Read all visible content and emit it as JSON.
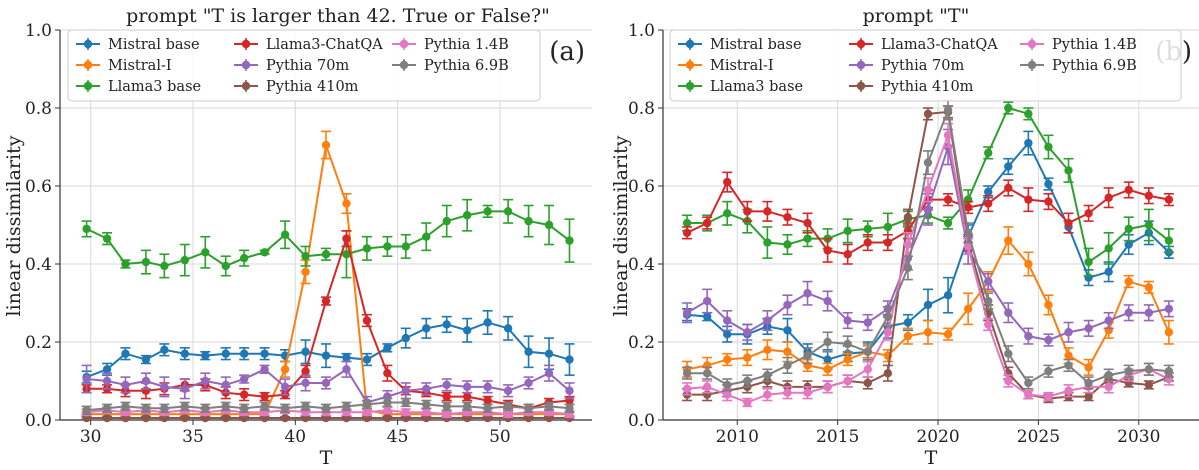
{
  "chart_data": [
    {
      "type": "line",
      "panel_label": "(a)",
      "title": "prompt \"T is larger than 42. True or False?\"",
      "xlabel": "T",
      "ylabel": "linear dissimilarity",
      "xlim": [
        28.5,
        54.5
      ],
      "ylim": [
        0,
        1.0
      ],
      "xticks": [
        30,
        35,
        40,
        45,
        50
      ],
      "yticks": [
        0.0,
        0.2,
        0.4,
        0.6,
        0.8,
        1.0
      ],
      "legend_position": "top",
      "x": [
        29.8,
        30.8,
        31.7,
        32.7,
        33.6,
        34.6,
        35.6,
        36.6,
        37.5,
        38.5,
        39.5,
        40.5,
        41.5,
        42.5,
        43.5,
        44.5,
        45.4,
        46.4,
        47.4,
        48.4,
        49.4,
        50.4,
        51.4,
        52.4,
        53.4
      ],
      "series": [
        {
          "name": "Mistral base",
          "color": "#1f77b4",
          "values": [
            0.11,
            0.13,
            0.17,
            0.155,
            0.18,
            0.17,
            0.165,
            0.17,
            0.17,
            0.17,
            0.165,
            0.175,
            0.165,
            0.16,
            0.155,
            0.185,
            0.21,
            0.235,
            0.245,
            0.23,
            0.25,
            0.235,
            0.175,
            0.17,
            0.155
          ],
          "errors": [
            0.015,
            0.015,
            0.015,
            0.01,
            0.015,
            0.015,
            0.01,
            0.015,
            0.015,
            0.015,
            0.015,
            0.03,
            0.03,
            0.01,
            0.015,
            0.01,
            0.025,
            0.025,
            0.02,
            0.03,
            0.03,
            0.03,
            0.04,
            0.04,
            0.04
          ]
        },
        {
          "name": "Mistral-I",
          "color": "#ff7f0e",
          "values": [
            0.015,
            0.015,
            0.015,
            0.015,
            0.015,
            0.015,
            0.015,
            0.015,
            0.015,
            0.015,
            0.13,
            0.38,
            0.705,
            0.555,
            0.025,
            0.015,
            0.015,
            0.015,
            0.015,
            0.015,
            0.015,
            0.015,
            0.015,
            0.015,
            0.015
          ],
          "errors": [
            0.005,
            0.005,
            0.005,
            0.005,
            0.005,
            0.005,
            0.005,
            0.005,
            0.005,
            0.005,
            0.02,
            0.03,
            0.035,
            0.025,
            0.01,
            0.005,
            0.005,
            0.005,
            0.005,
            0.005,
            0.005,
            0.005,
            0.005,
            0.005,
            0.005
          ]
        },
        {
          "name": "Llama3 base",
          "color": "#2ca02c",
          "values": [
            0.49,
            0.465,
            0.4,
            0.405,
            0.395,
            0.41,
            0.43,
            0.395,
            0.415,
            0.43,
            0.475,
            0.42,
            0.425,
            0.425,
            0.44,
            0.445,
            0.445,
            0.47,
            0.51,
            0.525,
            0.535,
            0.535,
            0.51,
            0.5,
            0.46
          ],
          "errors": [
            0.02,
            0.015,
            0.01,
            0.03,
            0.03,
            0.04,
            0.04,
            0.025,
            0.02,
            0.005,
            0.035,
            0.025,
            0.015,
            0.06,
            0.03,
            0.025,
            0.03,
            0.035,
            0.04,
            0.04,
            0.015,
            0.03,
            0.04,
            0.05,
            0.055
          ]
        },
        {
          "name": "Llama3-ChatQA",
          "color": "#d62728",
          "values": [
            0.08,
            0.08,
            0.075,
            0.075,
            0.08,
            0.09,
            0.09,
            0.07,
            0.065,
            0.06,
            0.065,
            0.125,
            0.305,
            0.465,
            0.255,
            0.12,
            0.075,
            0.07,
            0.06,
            0.06,
            0.05,
            0.04,
            0.03,
            0.045,
            0.05
          ],
          "errors": [
            0.01,
            0.01,
            0.015,
            0.02,
            0.015,
            0.015,
            0.015,
            0.015,
            0.015,
            0.01,
            0.01,
            0.015,
            0.01,
            0.02,
            0.015,
            0.02,
            0.01,
            0.01,
            0.01,
            0.01,
            0.01,
            0.01,
            0.01,
            0.01,
            0.01
          ]
        },
        {
          "name": "Pythia 70m",
          "color": "#9467bd",
          "values": [
            0.105,
            0.1,
            0.09,
            0.1,
            0.085,
            0.08,
            0.1,
            0.09,
            0.105,
            0.13,
            0.085,
            0.095,
            0.095,
            0.13,
            0.045,
            0.06,
            0.075,
            0.08,
            0.09,
            0.085,
            0.085,
            0.075,
            0.095,
            0.12,
            0.075
          ],
          "errors": [
            0.035,
            0.02,
            0.02,
            0.02,
            0.025,
            0.025,
            0.02,
            0.02,
            0.01,
            0.01,
            0.02,
            0.02,
            0.015,
            0.02,
            0.015,
            0.015,
            0.02,
            0.015,
            0.015,
            0.015,
            0.015,
            0.015,
            0.015,
            0.02,
            0.02
          ]
        },
        {
          "name": "Pythia 410m",
          "color": "#8c564b",
          "values": [
            0.005,
            0.005,
            0.005,
            0.005,
            0.005,
            0.005,
            0.005,
            0.005,
            0.005,
            0.005,
            0.005,
            0.005,
            0.005,
            0.005,
            0.005,
            0.005,
            0.005,
            0.005,
            0.005,
            0.005,
            0.005,
            0.005,
            0.005,
            0.005,
            0.005
          ],
          "errors": [
            0.003,
            0.003,
            0.003,
            0.003,
            0.003,
            0.003,
            0.003,
            0.003,
            0.003,
            0.003,
            0.003,
            0.003,
            0.003,
            0.003,
            0.003,
            0.003,
            0.003,
            0.003,
            0.003,
            0.003,
            0.003,
            0.003,
            0.003,
            0.003,
            0.003
          ]
        },
        {
          "name": "Pythia 1.4B",
          "color": "#e377c2",
          "values": [
            0.02,
            0.025,
            0.02,
            0.025,
            0.02,
            0.025,
            0.02,
            0.025,
            0.02,
            0.02,
            0.025,
            0.02,
            0.02,
            0.02,
            0.02,
            0.025,
            0.02,
            0.02,
            0.015,
            0.02,
            0.02,
            0.015,
            0.02,
            0.02,
            0.015
          ],
          "errors": [
            0.008,
            0.008,
            0.008,
            0.008,
            0.008,
            0.008,
            0.008,
            0.008,
            0.008,
            0.008,
            0.008,
            0.008,
            0.008,
            0.008,
            0.008,
            0.008,
            0.008,
            0.008,
            0.008,
            0.008,
            0.008,
            0.008,
            0.008,
            0.008,
            0.008
          ]
        },
        {
          "name": "Pythia 6.9B",
          "color": "#7f7f7f",
          "values": [
            0.025,
            0.03,
            0.035,
            0.03,
            0.03,
            0.035,
            0.03,
            0.035,
            0.03,
            0.035,
            0.03,
            0.035,
            0.03,
            0.035,
            0.04,
            0.045,
            0.045,
            0.04,
            0.035,
            0.035,
            0.03,
            0.035,
            0.03,
            0.035,
            0.03
          ],
          "errors": [
            0.01,
            0.01,
            0.01,
            0.01,
            0.01,
            0.01,
            0.01,
            0.01,
            0.01,
            0.01,
            0.01,
            0.01,
            0.01,
            0.01,
            0.01,
            0.01,
            0.01,
            0.01,
            0.01,
            0.01,
            0.01,
            0.01,
            0.01,
            0.01,
            0.01
          ]
        }
      ]
    },
    {
      "type": "line",
      "panel_label": "(b)",
      "title": "prompt \"T\"",
      "xlabel": "T",
      "ylabel": "linear dissimilarity",
      "xlim": [
        2006.3,
        2033.0
      ],
      "ylim": [
        0,
        1.0
      ],
      "xticks": [
        2010,
        2015,
        2020,
        2025,
        2030
      ],
      "yticks": [
        0.0,
        0.2,
        0.4,
        0.6,
        0.8,
        1.0
      ],
      "legend_position": "top",
      "x": [
        2007.5,
        2008.5,
        2009.5,
        2010.5,
        2011.5,
        2012.5,
        2013.5,
        2014.5,
        2015.5,
        2016.5,
        2017.5,
        2018.5,
        2019.5,
        2020.5,
        2021.5,
        2022.5,
        2023.5,
        2024.5,
        2025.5,
        2026.5,
        2027.5,
        2028.5,
        2029.5,
        2030.5,
        2031.5
      ],
      "series": [
        {
          "name": "Mistral base",
          "color": "#1f77b4",
          "values": [
            0.27,
            0.265,
            0.22,
            0.22,
            0.24,
            0.23,
            0.175,
            0.155,
            0.17,
            0.175,
            0.24,
            0.25,
            0.295,
            0.32,
            0.47,
            0.585,
            0.65,
            0.71,
            0.605,
            0.495,
            0.365,
            0.38,
            0.45,
            0.48,
            0.43
          ],
          "errors": [
            0.015,
            0.01,
            0.02,
            0.025,
            0.02,
            0.03,
            0.02,
            0.025,
            0.02,
            0.025,
            0.03,
            0.02,
            0.04,
            0.045,
            0.03,
            0.015,
            0.02,
            0.03,
            0.015,
            0.015,
            0.02,
            0.025,
            0.025,
            0.03,
            0.015
          ]
        },
        {
          "name": "Mistral-I",
          "color": "#ff7f0e",
          "values": [
            0.13,
            0.14,
            0.155,
            0.16,
            0.18,
            0.175,
            0.14,
            0.13,
            0.155,
            0.175,
            0.165,
            0.215,
            0.225,
            0.22,
            0.285,
            0.355,
            0.46,
            0.4,
            0.295,
            0.165,
            0.135,
            0.23,
            0.355,
            0.34,
            0.225
          ],
          "errors": [
            0.02,
            0.02,
            0.015,
            0.02,
            0.025,
            0.025,
            0.015,
            0.015,
            0.015,
            0.015,
            0.015,
            0.02,
            0.03,
            0.015,
            0.04,
            0.025,
            0.035,
            0.03,
            0.025,
            0.02,
            0.02,
            0.02,
            0.015,
            0.015,
            0.03
          ]
        },
        {
          "name": "Llama3 base",
          "color": "#2ca02c",
          "values": [
            0.505,
            0.505,
            0.53,
            0.51,
            0.455,
            0.45,
            0.465,
            0.465,
            0.485,
            0.49,
            0.495,
            0.515,
            0.525,
            0.505,
            0.565,
            0.685,
            0.8,
            0.785,
            0.7,
            0.64,
            0.405,
            0.44,
            0.49,
            0.5,
            0.46
          ],
          "errors": [
            0.02,
            0.02,
            0.03,
            0.03,
            0.04,
            0.025,
            0.02,
            0.025,
            0.03,
            0.02,
            0.035,
            0.02,
            0.02,
            0.015,
            0.025,
            0.015,
            0.015,
            0.015,
            0.03,
            0.03,
            0.035,
            0.04,
            0.03,
            0.04,
            0.03
          ]
        },
        {
          "name": "Llama3-ChatQA",
          "color": "#d62728",
          "values": [
            0.48,
            0.505,
            0.61,
            0.535,
            0.535,
            0.52,
            0.505,
            0.435,
            0.425,
            0.455,
            0.455,
            0.485,
            0.565,
            0.565,
            0.545,
            0.555,
            0.595,
            0.565,
            0.56,
            0.505,
            0.53,
            0.57,
            0.59,
            0.575,
            0.565
          ],
          "errors": [
            0.015,
            0.015,
            0.025,
            0.025,
            0.025,
            0.02,
            0.025,
            0.03,
            0.025,
            0.02,
            0.02,
            0.02,
            0.025,
            0.015,
            0.015,
            0.02,
            0.02,
            0.03,
            0.02,
            0.025,
            0.02,
            0.025,
            0.02,
            0.02,
            0.015
          ]
        },
        {
          "name": "Pythia 70m",
          "color": "#9467bd",
          "values": [
            0.275,
            0.305,
            0.255,
            0.225,
            0.255,
            0.295,
            0.325,
            0.305,
            0.255,
            0.25,
            0.285,
            0.415,
            0.54,
            0.7,
            0.435,
            0.355,
            0.275,
            0.215,
            0.205,
            0.225,
            0.235,
            0.255,
            0.275,
            0.275,
            0.285
          ],
          "errors": [
            0.025,
            0.03,
            0.025,
            0.02,
            0.025,
            0.025,
            0.03,
            0.025,
            0.02,
            0.02,
            0.02,
            0.03,
            0.04,
            0.045,
            0.035,
            0.02,
            0.025,
            0.02,
            0.015,
            0.025,
            0.02,
            0.02,
            0.02,
            0.02,
            0.02
          ]
        },
        {
          "name": "Pythia 410m",
          "color": "#8c564b",
          "values": [
            0.065,
            0.065,
            0.075,
            0.085,
            0.1,
            0.085,
            0.085,
            0.085,
            0.1,
            0.095,
            0.12,
            0.52,
            0.785,
            0.79,
            0.455,
            0.275,
            0.12,
            0.065,
            0.055,
            0.06,
            0.06,
            0.105,
            0.095,
            0.09,
            0.11
          ],
          "errors": [
            0.015,
            0.015,
            0.015,
            0.015,
            0.015,
            0.015,
            0.015,
            0.015,
            0.015,
            0.015,
            0.02,
            0.02,
            0.015,
            0.015,
            0.02,
            0.02,
            0.015,
            0.01,
            0.01,
            0.01,
            0.01,
            0.01,
            0.01,
            0.01,
            0.01
          ]
        },
        {
          "name": "Pythia 1.4B",
          "color": "#e377c2",
          "values": [
            0.08,
            0.085,
            0.065,
            0.045,
            0.065,
            0.07,
            0.07,
            0.085,
            0.1,
            0.13,
            0.225,
            0.45,
            0.59,
            0.73,
            0.445,
            0.245,
            0.1,
            0.065,
            0.06,
            0.075,
            0.085,
            0.085,
            0.115,
            0.13,
            0.105
          ],
          "errors": [
            0.015,
            0.015,
            0.015,
            0.01,
            0.015,
            0.015,
            0.015,
            0.015,
            0.015,
            0.02,
            0.02,
            0.03,
            0.03,
            0.03,
            0.02,
            0.015,
            0.015,
            0.01,
            0.01,
            0.015,
            0.015,
            0.015,
            0.015,
            0.015,
            0.015
          ]
        },
        {
          "name": "Pythia 6.9B",
          "color": "#7f7f7f",
          "values": [
            0.12,
            0.12,
            0.09,
            0.1,
            0.115,
            0.14,
            0.165,
            0.2,
            0.195,
            0.175,
            0.265,
            0.39,
            0.66,
            0.795,
            0.48,
            0.305,
            0.17,
            0.095,
            0.125,
            0.14,
            0.095,
            0.115,
            0.125,
            0.13,
            0.125
          ],
          "errors": [
            0.015,
            0.015,
            0.015,
            0.015,
            0.015,
            0.02,
            0.02,
            0.025,
            0.02,
            0.02,
            0.025,
            0.03,
            0.03,
            0.025,
            0.025,
            0.02,
            0.02,
            0.015,
            0.015,
            0.015,
            0.015,
            0.015,
            0.015,
            0.015,
            0.015
          ]
        }
      ]
    }
  ]
}
